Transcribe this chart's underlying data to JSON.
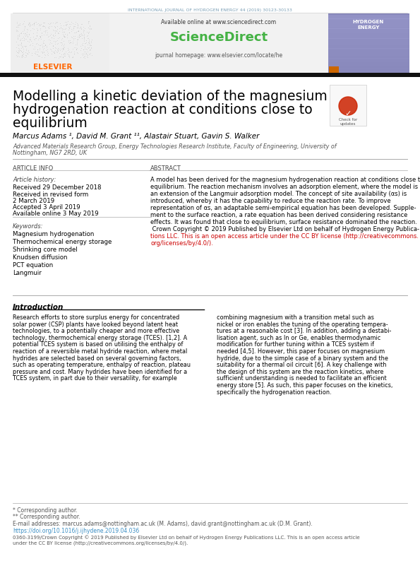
{
  "page_bg": "#ffffff",
  "header_journal_text": "INTERNATIONAL JOURNAL OF HYDROGEN ENERGY 44 (2019) 30123-30133",
  "header_journal_color": "#7a9eb5",
  "elsevier_orange": "#ff6600",
  "sciencedirect_green": "#44b244",
  "journal_homepage_text": "journal homepage: www.elsevier.com/locate/he",
  "homepage_link_color": "#3d8fc4",
  "available_online_text": "Available online at www.sciencedirect.com",
  "sciencedirect_title": "ScienceDirect",
  "article_info_title": "ARTICLE INFO",
  "abstract_title": "ABSTRACT",
  "article_history_label": "Article history:",
  "received_1": "Received 29 December 2018",
  "received_revised": "Received in revised form",
  "revised_date": "2 March 2019",
  "accepted": "Accepted 3 April 2019",
  "available_online": "Available online 3 May 2019",
  "keywords_label": "Keywords:",
  "keywords": [
    "Magnesium hydrogenation",
    "Thermochemical energy storage",
    "Shrinking core model",
    "Knudsen diffusion",
    "PCT equation",
    "Langmuir"
  ],
  "abstract_lines": [
    "A model has been derived for the magnesium hydrogenation reaction at conditions close to",
    "equilibrium. The reaction mechanism involves an adsorption element, where the model is",
    "an extension of the Langmuir adsorption model. The concept of site availability (αs) is",
    "introduced, whereby it has the capability to reduce the reaction rate. To improve",
    "representation of αs, an adaptable semi-empirical equation has been developed. Supple-",
    "ment to the surface reaction, a rate equation has been derived considering resistance",
    "effects. It was found that close to equilibrium, surface resistance dominated the reaction.",
    " Crown Copyright © 2019 Published by Elsevier Ltd on behalf of Hydrogen Energy Publica-",
    "tions LLC. This is an open access article under the CC BY license (http://creativecommons.",
    "org/licenses/by/4.0/)."
  ],
  "intro_title": "Introduction",
  "intro_left_lines": [
    "Research efforts to store surplus energy for concentrated",
    "solar power (CSP) plants have looked beyond latent heat",
    "technologies, to a potentially cheaper and more effective",
    "technology, thermochemical energy storage (TCES). [1,2]. A",
    "potential TCES system is based on utilising the enthalpy of",
    "reaction of a reversible metal hydride reaction, where metal",
    "hydrides are selected based on several governing factors,",
    "such as operating temperature, enthalpy of reaction, plateau",
    "pressure and cost. Many hydrides have been identified for a",
    "TCES system, in part due to their versatility, for example"
  ],
  "intro_right_lines": [
    "combining magnesium with a transition metal such as",
    "nickel or iron enables the tuning of the operating tempera-",
    "tures at a reasonable cost [3]. In addition, adding a destabi-",
    "lisation agent, such as In or Ge, enables thermodynamic",
    "modification for further tuning within a TCES system if",
    "needed [4,5]. However, this paper focuses on magnesium",
    "hydride, due to the simple case of a binary system and the",
    "suitability for a thermal oil circuit [6]. A key challenge with",
    "the design of this system are the reaction kinetics, where",
    "sufficient understanding is needed to facilitate an efficient",
    "energy store [5]. As such, this paper focuses on the kinetics,",
    "specifically the hydrogenation reaction."
  ],
  "footnote_text1": "* Corresponding author.",
  "footnote_text2": "** Corresponding author.",
  "footnote_email": "E-mail addresses: marcus.adams@nottingham.ac.uk (M. Adams), david.grant@nottingham.ac.uk (D.M. Grant).",
  "footnote_doi": "https://doi.org/10.1016/j.ijhydene.2019.04.036",
  "footnote_issn1": "0360-3199/Crown Copyright © 2019 Published by Elsevier Ltd on behalf of Hydrogen Energy Publications LLC. This is an open access article",
  "footnote_issn2": "under the CC BY license (http://creativecommons.org/licenses/by/4.0/)."
}
